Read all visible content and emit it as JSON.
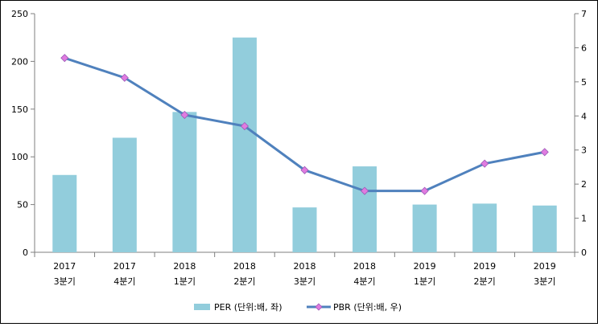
{
  "chart_data": {
    "type": "bar+line",
    "categories": [
      [
        "2017",
        "3분기"
      ],
      [
        "2017",
        "4분기"
      ],
      [
        "2018",
        "1분기"
      ],
      [
        "2018",
        "2분기"
      ],
      [
        "2018",
        "3분기"
      ],
      [
        "2018",
        "4분기"
      ],
      [
        "2019",
        "1분기"
      ],
      [
        "2019",
        "2분기"
      ],
      [
        "2019",
        "3분기"
      ]
    ],
    "series": [
      {
        "name": "PER (단위:배, 좌)",
        "type": "bar",
        "axis": "left",
        "color": "#92CDDC",
        "values": [
          81,
          120,
          147,
          225,
          47,
          90,
          50,
          51,
          49
        ]
      },
      {
        "name": "PBR (단위:배, 우)",
        "type": "line",
        "axis": "right",
        "color": "#4F81BD",
        "marker_color": "#E07BE0",
        "values": [
          5.7,
          5.12,
          4.03,
          3.7,
          2.41,
          1.8,
          1.8,
          2.6,
          2.94
        ]
      }
    ],
    "y_left": {
      "min": 0,
      "max": 250,
      "ticks": [
        0,
        50,
        100,
        150,
        200,
        250
      ]
    },
    "y_right": {
      "min": 0,
      "max": 7,
      "ticks": [
        0,
        1,
        2,
        3,
        4,
        5,
        6,
        7
      ]
    },
    "legend": {
      "position": "bottom"
    },
    "grid": false
  }
}
